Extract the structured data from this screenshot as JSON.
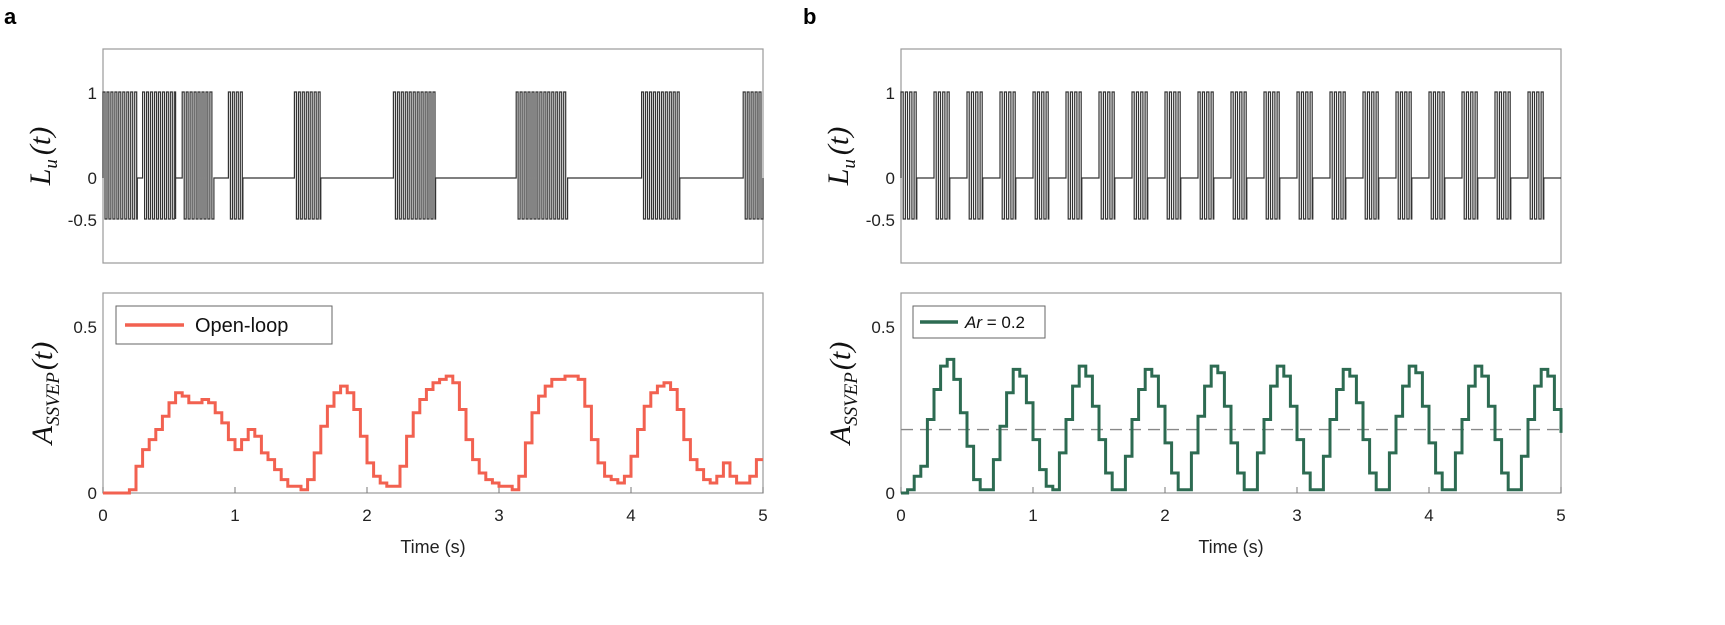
{
  "panels": [
    {
      "letter": "a",
      "top": {
        "ylabel_main": "L",
        "ylabel_sub": "u",
        "ylabel_tail": "(t)",
        "yticks": [
          "1",
          "0",
          "-0.5"
        ],
        "color": "#333333"
      },
      "bottom": {
        "ylabel_main": "A",
        "ylabel_sub": "SSVEP",
        "ylabel_tail": "(t)",
        "yticks": [
          "0.5",
          "0"
        ],
        "legend": "Open-loop",
        "legend_parts": [
          "Open-loop"
        ],
        "color": "#f26150",
        "xticks": [
          "0",
          "1",
          "2",
          "3",
          "4",
          "5"
        ],
        "xlabel": "Time (s)"
      }
    },
    {
      "letter": "b",
      "top": {
        "ylabel_main": "L",
        "ylabel_sub": "u",
        "ylabel_tail": "(t)",
        "yticks": [
          "1",
          "0",
          "-0.5"
        ],
        "color": "#333333"
      },
      "bottom": {
        "ylabel_main": "A",
        "ylabel_sub": "SSVEP",
        "ylabel_tail": "(t)",
        "yticks": [
          "0.5",
          "0"
        ],
        "legend": "Ar = 0.2",
        "legend_parts": [
          "Ar",
          " = 0.2"
        ],
        "color": "#2d6b52",
        "threshold": 0.19,
        "xticks": [
          "0",
          "1",
          "2",
          "3",
          "4",
          "5"
        ],
        "xlabel": "Time (s)"
      }
    }
  ],
  "chart_data": [
    {
      "type": "line",
      "panel": "a-top",
      "x_range": [
        0,
        5
      ],
      "ylim": [
        -0.5,
        1.25
      ],
      "burst_pulse_period_s": 0.03,
      "bursts_s": [
        [
          0.0,
          0.26
        ],
        [
          0.3,
          0.55
        ],
        [
          0.6,
          0.84
        ],
        [
          0.95,
          1.06
        ],
        [
          1.45,
          1.65
        ],
        [
          2.2,
          2.52
        ],
        [
          3.13,
          3.52
        ],
        [
          4.08,
          4.37
        ],
        [
          4.85,
          5.0
        ]
      ],
      "levels": [
        1,
        0,
        -0.5
      ],
      "series": [
        {
          "values_note": "binary stimulus switching between 1 and -0.5 during bursts, 0 otherwise"
        }
      ]
    },
    {
      "type": "line",
      "panel": "a-bottom",
      "x_range": [
        0,
        5
      ],
      "ylim": [
        0,
        0.6
      ],
      "series": [
        {
          "name": "Open-loop",
          "x": [
            0,
            0.2,
            0.25,
            0.3,
            0.35,
            0.4,
            0.45,
            0.5,
            0.55,
            0.6,
            0.65,
            0.7,
            0.75,
            0.8,
            0.85,
            0.9,
            0.95,
            1.0,
            1.05,
            1.1,
            1.15,
            1.2,
            1.25,
            1.3,
            1.35,
            1.4,
            1.45,
            1.5,
            1.55,
            1.6,
            1.65,
            1.7,
            1.75,
            1.8,
            1.85,
            1.9,
            1.95,
            2.0,
            2.05,
            2.1,
            2.15,
            2.2,
            2.25,
            2.3,
            2.35,
            2.4,
            2.45,
            2.5,
            2.55,
            2.6,
            2.65,
            2.7,
            2.75,
            2.8,
            2.85,
            2.9,
            2.95,
            3.0,
            3.05,
            3.1,
            3.15,
            3.2,
            3.25,
            3.3,
            3.35,
            3.4,
            3.45,
            3.5,
            3.55,
            3.6,
            3.65,
            3.7,
            3.75,
            3.8,
            3.85,
            3.9,
            3.95,
            4.0,
            4.05,
            4.1,
            4.15,
            4.2,
            4.25,
            4.3,
            4.35,
            4.4,
            4.45,
            4.5,
            4.55,
            4.6,
            4.65,
            4.7,
            4.75,
            4.8,
            4.85,
            4.9,
            4.95,
            5.0
          ],
          "values": [
            0,
            0.01,
            0.08,
            0.13,
            0.16,
            0.19,
            0.23,
            0.27,
            0.3,
            0.29,
            0.27,
            0.27,
            0.28,
            0.27,
            0.24,
            0.21,
            0.16,
            0.13,
            0.16,
            0.19,
            0.17,
            0.12,
            0.1,
            0.07,
            0.04,
            0.02,
            0.02,
            0.01,
            0.04,
            0.12,
            0.2,
            0.26,
            0.3,
            0.32,
            0.3,
            0.25,
            0.17,
            0.09,
            0.05,
            0.03,
            0.02,
            0.02,
            0.08,
            0.17,
            0.24,
            0.28,
            0.31,
            0.33,
            0.34,
            0.35,
            0.33,
            0.25,
            0.16,
            0.1,
            0.06,
            0.04,
            0.03,
            0.02,
            0.02,
            0.01,
            0.05,
            0.15,
            0.24,
            0.29,
            0.32,
            0.34,
            0.34,
            0.35,
            0.35,
            0.34,
            0.26,
            0.16,
            0.09,
            0.05,
            0.04,
            0.03,
            0.05,
            0.11,
            0.19,
            0.26,
            0.3,
            0.32,
            0.33,
            0.31,
            0.25,
            0.16,
            0.1,
            0.07,
            0.04,
            0.03,
            0.05,
            0.09,
            0.05,
            0.03,
            0.03,
            0.05,
            0.1,
            0.1
          ]
        }
      ]
    },
    {
      "type": "line",
      "panel": "b-top",
      "x_range": [
        0,
        5
      ],
      "ylim": [
        -0.5,
        1.25
      ],
      "burst_pulse_period_s": 0.033,
      "bursts_s": [
        [
          0.0,
          0.12
        ],
        [
          0.25,
          0.37
        ],
        [
          0.5,
          0.62
        ],
        [
          0.75,
          0.87
        ],
        [
          1.0,
          1.12
        ],
        [
          1.25,
          1.37
        ],
        [
          1.5,
          1.62
        ],
        [
          1.75,
          1.87
        ],
        [
          2.0,
          2.12
        ],
        [
          2.25,
          2.37
        ],
        [
          2.5,
          2.62
        ],
        [
          2.75,
          2.87
        ],
        [
          3.0,
          3.12
        ],
        [
          3.25,
          3.37
        ],
        [
          3.5,
          3.62
        ],
        [
          3.75,
          3.87
        ],
        [
          4.0,
          4.12
        ],
        [
          4.25,
          4.37
        ],
        [
          4.5,
          4.62
        ],
        [
          4.75,
          4.87
        ]
      ],
      "levels": [
        1,
        0,
        -0.5
      ],
      "series": [
        {
          "values_note": "binary stimulus switching between 1 and -0.5 during bursts, 0 otherwise"
        }
      ]
    },
    {
      "type": "line",
      "panel": "b-bottom",
      "x_range": [
        0,
        5
      ],
      "ylim": [
        0,
        0.6
      ],
      "series": [
        {
          "name": "Ar = 0.2",
          "x": [
            0,
            0.05,
            0.1,
            0.15,
            0.2,
            0.25,
            0.3,
            0.35,
            0.4,
            0.45,
            0.5,
            0.55,
            0.6,
            0.65,
            0.7,
            0.75,
            0.8,
            0.85,
            0.9,
            0.95,
            1.0,
            1.05,
            1.1,
            1.15,
            1.2,
            1.25,
            1.3,
            1.35,
            1.4,
            1.45,
            1.5,
            1.55,
            1.6,
            1.65,
            1.7,
            1.75,
            1.8,
            1.85,
            1.9,
            1.95,
            2.0,
            2.05,
            2.1,
            2.15,
            2.2,
            2.25,
            2.3,
            2.35,
            2.4,
            2.45,
            2.5,
            2.55,
            2.6,
            2.65,
            2.7,
            2.75,
            2.8,
            2.85,
            2.9,
            2.95,
            3.0,
            3.05,
            3.1,
            3.15,
            3.2,
            3.25,
            3.3,
            3.35,
            3.4,
            3.45,
            3.5,
            3.55,
            3.6,
            3.65,
            3.7,
            3.75,
            3.8,
            3.85,
            3.9,
            3.95,
            4.0,
            4.05,
            4.1,
            4.15,
            4.2,
            4.25,
            4.3,
            4.35,
            4.4,
            4.45,
            4.5,
            4.55,
            4.6,
            4.65,
            4.7,
            4.75,
            4.8,
            4.85,
            4.9,
            4.95,
            5.0
          ],
          "values": [
            0,
            0.01,
            0.05,
            0.08,
            0.22,
            0.31,
            0.38,
            0.4,
            0.34,
            0.24,
            0.14,
            0.04,
            0.01,
            0.01,
            0.1,
            0.2,
            0.3,
            0.37,
            0.35,
            0.27,
            0.16,
            0.07,
            0.02,
            0.01,
            0.12,
            0.22,
            0.32,
            0.38,
            0.35,
            0.26,
            0.16,
            0.06,
            0.01,
            0.01,
            0.11,
            0.22,
            0.31,
            0.37,
            0.35,
            0.26,
            0.15,
            0.06,
            0.01,
            0.01,
            0.12,
            0.23,
            0.32,
            0.38,
            0.36,
            0.26,
            0.15,
            0.06,
            0.01,
            0.01,
            0.12,
            0.22,
            0.32,
            0.38,
            0.35,
            0.26,
            0.16,
            0.06,
            0.01,
            0.01,
            0.11,
            0.22,
            0.31,
            0.37,
            0.35,
            0.27,
            0.16,
            0.06,
            0.01,
            0.01,
            0.12,
            0.23,
            0.32,
            0.38,
            0.36,
            0.26,
            0.15,
            0.06,
            0.01,
            0.01,
            0.12,
            0.22,
            0.32,
            0.38,
            0.35,
            0.26,
            0.16,
            0.06,
            0.01,
            0.01,
            0.11,
            0.22,
            0.32,
            0.37,
            0.35,
            0.25,
            0.18
          ]
        }
      ]
    }
  ]
}
